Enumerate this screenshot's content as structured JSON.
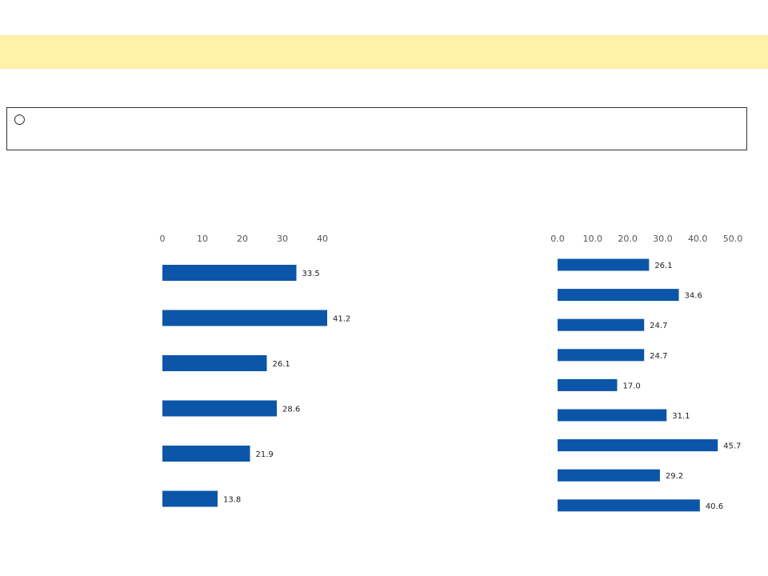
{
  "page": {
    "title": "",
    "intro_bullet": "○",
    "intro_text": ""
  },
  "chart_data": [
    {
      "type": "bar",
      "orientation": "horizontal",
      "title": "",
      "subtitle": "",
      "xlim": [
        0,
        40
      ],
      "ticks": [
        "0",
        "10",
        "20",
        "30",
        "40"
      ],
      "color": "#0b56a8",
      "categories": [
        "",
        "",
        "",
        "",
        "",
        ""
      ],
      "values": [
        33.5,
        41.2,
        26.1,
        28.6,
        21.9,
        13.8
      ],
      "value_labels": [
        "33.5",
        "41.2",
        "26.1",
        "28.6",
        "21.9",
        "13.8"
      ]
    },
    {
      "type": "bar",
      "orientation": "horizontal",
      "title": "",
      "subtitle": "",
      "xlim": [
        0,
        50
      ],
      "ticks": [
        "0.0",
        "10.0",
        "20.0",
        "30.0",
        "40.0",
        "50.0"
      ],
      "color": "#0b56a8",
      "categories": [
        "",
        "",
        "",
        "",
        "",
        "",
        "",
        "",
        ""
      ],
      "values": [
        26.1,
        34.6,
        24.7,
        24.7,
        17.0,
        31.1,
        45.7,
        29.2,
        40.6
      ],
      "value_labels": [
        "26.1",
        "34.6",
        "24.7",
        "24.7",
        "17.0",
        "31.1",
        "45.7",
        "29.2",
        "40.6"
      ]
    }
  ]
}
